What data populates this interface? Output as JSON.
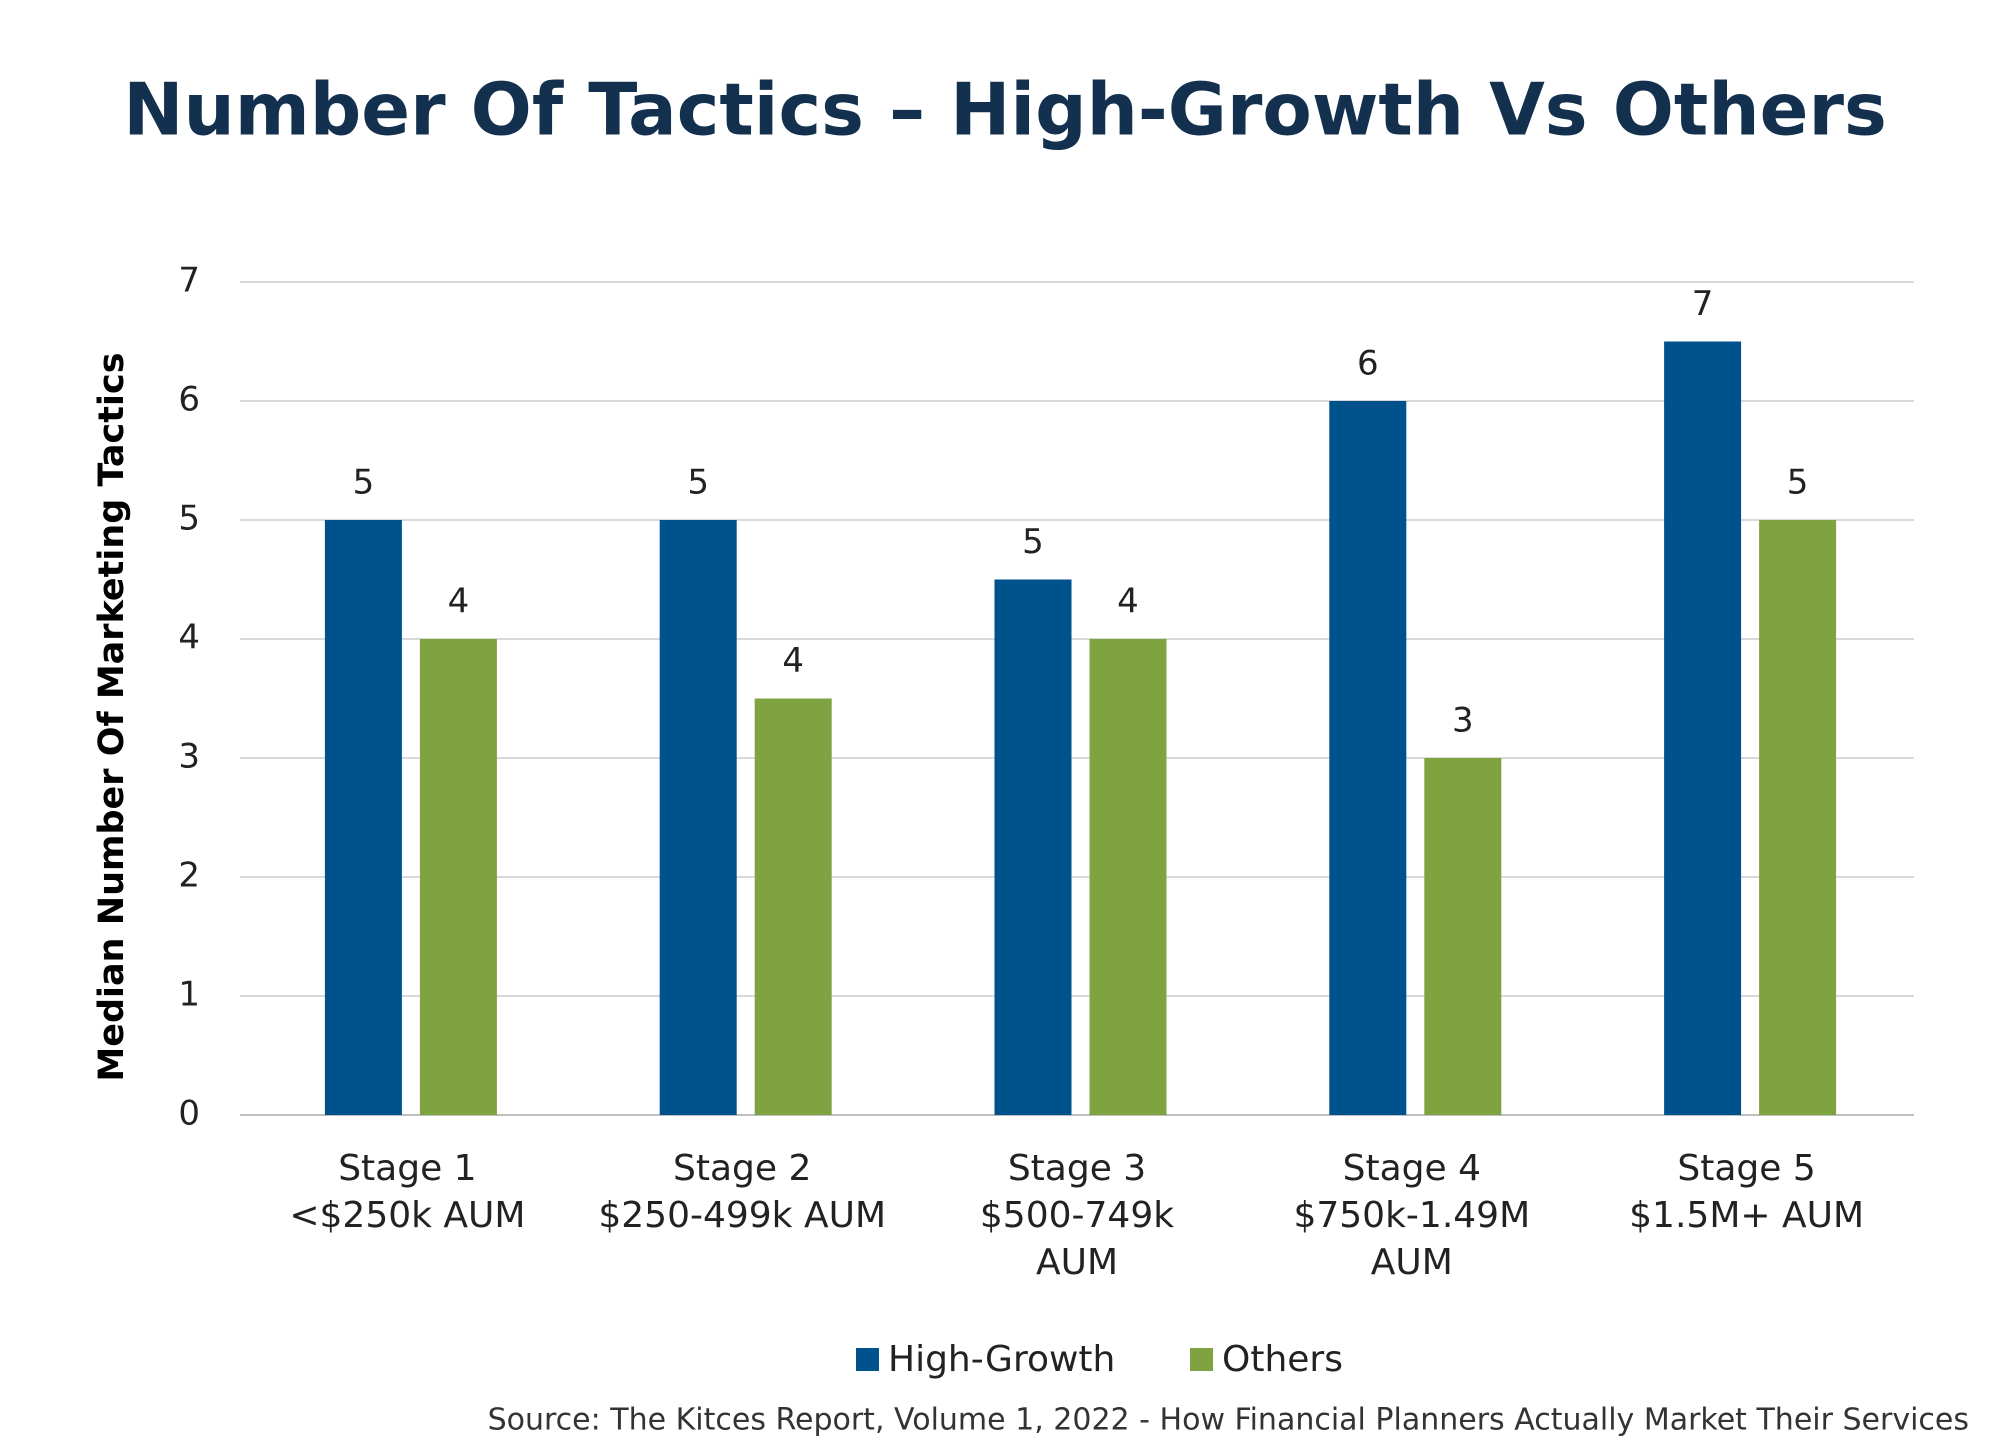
{
  "chart_data": {
    "type": "bar",
    "title": "Number Of Tactics – High-Growth Vs Others",
    "y_label": "Median Number Of Marketing Tactics",
    "categories": [
      [
        "Stage 1",
        "<$250k AUM"
      ],
      [
        "Stage 2",
        "$250-499k AUM"
      ],
      [
        "Stage 3",
        "$500-749k",
        "AUM"
      ],
      [
        "Stage 4",
        "$750k-1.49M",
        "AUM"
      ],
      [
        "Stage 5",
        "$1.5M+ AUM"
      ]
    ],
    "series": [
      {
        "name": "High-Growth",
        "color": "#00528c",
        "values": [
          5,
          5,
          4.5,
          6,
          6.5
        ],
        "value_labels": [
          "5",
          "5",
          "5",
          "6",
          "7"
        ]
      },
      {
        "name": "Others",
        "color": "#80a342",
        "values": [
          4,
          3.5,
          4,
          3,
          5
        ],
        "value_labels": [
          "4",
          "4",
          "4",
          "3",
          "5"
        ]
      }
    ],
    "ylim": [
      0,
      7
    ],
    "yticks": [
      0,
      1,
      2,
      3,
      4,
      5,
      6,
      7
    ],
    "grid": true,
    "source": "Source: The Kitces Report, Volume 1, 2022 - How Financial Planners Actually Market Their Services"
  }
}
